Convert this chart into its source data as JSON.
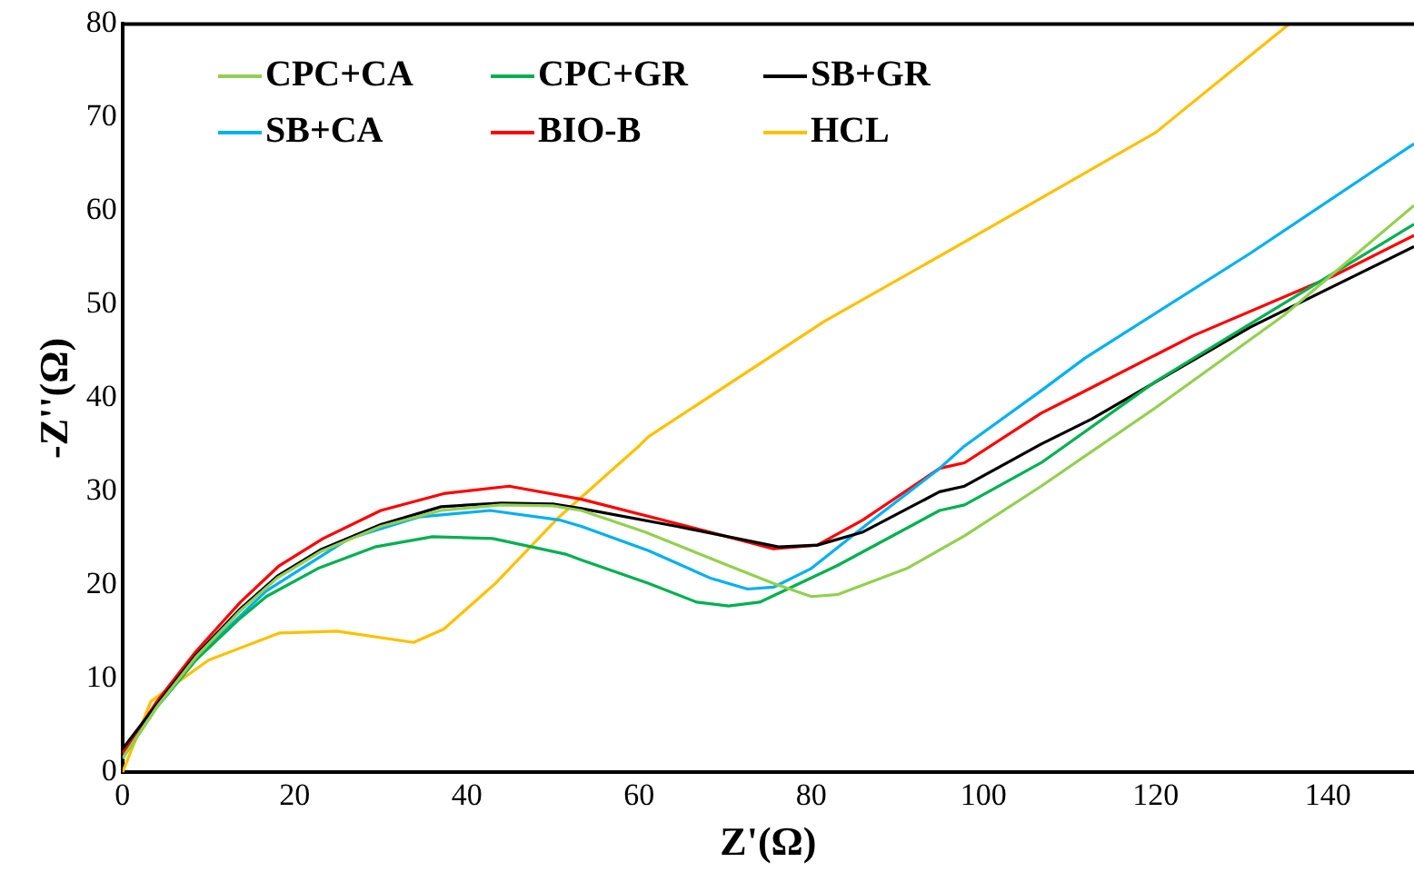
{
  "chart_data": {
    "type": "line",
    "xlabel": "Z'(Ω)",
    "ylabel": "-Z''(Ω)",
    "xlim": [
      0,
      150
    ],
    "ylim": [
      0,
      80
    ],
    "xticks": [
      0,
      20,
      40,
      60,
      80,
      100,
      120,
      140
    ],
    "yticks": [
      0,
      10,
      20,
      30,
      40,
      50,
      60,
      70,
      80
    ],
    "grid": false,
    "legend": "top left",
    "marker": "none",
    "line_style": "solid",
    "series": [
      {
        "name": "CPC+CA",
        "color": "#92d050",
        "x": [
          0,
          4,
          8.5,
          13.7,
          18,
          23,
          30,
          37,
          44,
          50,
          53.3,
          60.7,
          70.4,
          75.6,
          80,
          83,
          91.1,
          97.8,
          106.7,
          120,
          134.8,
          150
        ],
        "values": [
          1.5,
          7,
          12.3,
          17.3,
          20.8,
          23.6,
          26.3,
          28,
          28.6,
          28.5,
          28,
          25.7,
          22.1,
          20.2,
          18.8,
          19,
          21.8,
          25.3,
          30.6,
          39,
          48.8,
          60.6
        ]
      },
      {
        "name": "CPC+GR",
        "color": "#00b050",
        "x": [
          0,
          4,
          8.5,
          13.7,
          16.7,
          22.7,
          29.3,
          36,
          43,
          51.6,
          53.3,
          61.1,
          66.7,
          70.4,
          74,
          83,
          94.9,
          97.8,
          106.7,
          120,
          150
        ],
        "values": [
          1.5,
          7,
          12,
          16.5,
          18.8,
          21.8,
          24.1,
          25.2,
          25,
          23.3,
          22.7,
          20.2,
          18.2,
          17.8,
          18.2,
          22.1,
          28,
          28.6,
          33.1,
          41.8,
          58.6
        ]
      },
      {
        "name": "SB+GR",
        "color": "#000000",
        "x": [
          0,
          4,
          8.5,
          13.7,
          18,
          23,
          30,
          37,
          44,
          50,
          53.3,
          64.4,
          76.2,
          80.7,
          86,
          94.9,
          97.8,
          106.7,
          112.6,
          131,
          150
        ],
        "values": [
          2.5,
          7.3,
          12.5,
          17.5,
          21,
          23.8,
          26.5,
          28.4,
          28.8,
          28.7,
          28.2,
          26.3,
          24.1,
          24.3,
          25.7,
          30,
          30.6,
          35.1,
          37.8,
          47.6,
          56.2
        ]
      },
      {
        "name": "SB+CA",
        "color": "#00b0f0",
        "x": [
          4,
          9.3,
          16.7,
          26.3,
          34.4,
          42.7,
          50.7,
          53.3,
          61.1,
          68.2,
          72.6,
          75.6,
          80,
          86.7,
          94.9,
          97.8,
          106.7,
          111.8,
          131,
          150
        ],
        "values": [
          7,
          12.9,
          19.4,
          25,
          27.3,
          28,
          27,
          26.3,
          23.7,
          20.8,
          19.6,
          19.8,
          21.8,
          26.7,
          32.5,
          34.9,
          40.8,
          44.3,
          55.5,
          67.2
        ]
      },
      {
        "name": "BIO-B",
        "color": "#ff0000",
        "x": [
          0,
          4,
          8.5,
          13.7,
          18.2,
          23.3,
          30,
          37.3,
          44.9,
          53.3,
          68.2,
          75.6,
          80.7,
          86,
          94.9,
          97.8,
          106.7,
          111,
          124.4,
          140.7,
          150
        ],
        "values": [
          2,
          7.6,
          12.9,
          18.2,
          22.1,
          25,
          28,
          29.8,
          30.6,
          29.2,
          25.7,
          23.9,
          24.3,
          27,
          32.5,
          33.1,
          38.4,
          40.4,
          46.7,
          53.1,
          57.4
        ]
      },
      {
        "name": "HCL",
        "color": "#ffc000",
        "x": [
          0,
          3.3,
          10,
          18.2,
          24.9,
          33.8,
          37.3,
          43.3,
          50.7,
          60,
          61.1,
          81.5,
          97.8,
          120,
          135.5
        ],
        "values": [
          0,
          7.6,
          12,
          14.9,
          15.1,
          13.9,
          15.3,
          20.2,
          27.3,
          34.9,
          35.9,
          48.2,
          56.7,
          68.4,
          80
        ]
      }
    ]
  }
}
